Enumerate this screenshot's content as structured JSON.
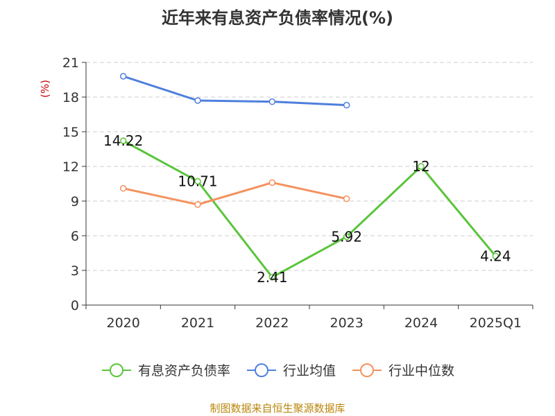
{
  "chart_data": {
    "type": "line",
    "title": "近年来有息资产负债率情况(%)",
    "ylabel": "(%)",
    "xlabel": "",
    "categories": [
      "2020",
      "2021",
      "2022",
      "2023",
      "2024",
      "2025Q1"
    ],
    "ylim": [
      0,
      21
    ],
    "yticks": [
      0,
      3,
      6,
      9,
      12,
      15,
      18,
      21
    ],
    "grid": true,
    "legend_position": "bottom",
    "series": [
      {
        "name": "有息资产负债率",
        "color": "#5ac43a",
        "values": [
          14.22,
          10.71,
          2.41,
          5.92,
          12,
          4.24
        ],
        "labels": [
          "14.22",
          "10.71",
          "2.41",
          "5.92",
          "12",
          "4.24"
        ]
      },
      {
        "name": "行业均值",
        "color": "#4e7fdc",
        "values": [
          19.8,
          17.7,
          17.6,
          17.3,
          null,
          null
        ]
      },
      {
        "name": "行业中位数",
        "color": "#f4915e",
        "values": [
          10.1,
          8.7,
          10.6,
          9.2,
          null,
          null
        ]
      }
    ]
  },
  "source_note": "制图数据来自恒生聚源数据库"
}
